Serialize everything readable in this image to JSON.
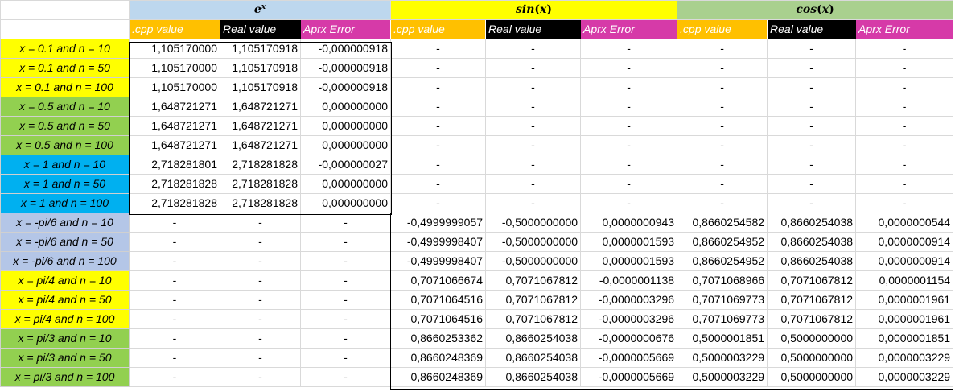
{
  "colors": {
    "ex_band": "#bdd7ee",
    "sin_band": "#ffff00",
    "cos_band": "#a9d08e",
    "cpp_header": "#ffc000",
    "real_header": "#000000",
    "error_header": "#d63aa8",
    "row_yellow": "#ffff00",
    "row_green": "#92d050",
    "row_blue": "#00b0f0",
    "row_lavender": "#b4c6e7"
  },
  "groups": [
    {
      "key": "ex",
      "base": "e",
      "sup": "x"
    },
    {
      "key": "sin",
      "func": "sin",
      "arg": "x"
    },
    {
      "key": "cos",
      "func": "cos",
      "arg": "x"
    }
  ],
  "headers": [
    ".cpp value",
    "Real value",
    "Aprx Error",
    ".cpp value",
    "Real value",
    "Aprx Error",
    ".cpp value",
    "Real value",
    "Aprx Error"
  ],
  "rows": [
    {
      "label": "x = 0.1 and n = 10",
      "color": "#ffff00",
      "cells": [
        "1,105170000",
        "1,105170918",
        "-0,000000918",
        "-",
        "-",
        "-",
        "-",
        "-",
        "-"
      ]
    },
    {
      "label": "x = 0.1 and n = 50",
      "color": "#ffff00",
      "cells": [
        "1,105170000",
        "1,105170918",
        "-0,000000918",
        "-",
        "-",
        "-",
        "-",
        "-",
        "-"
      ]
    },
    {
      "label": "x = 0.1 and n = 100",
      "color": "#ffff00",
      "cells": [
        "1,105170000",
        "1,105170918",
        "-0,000000918",
        "-",
        "-",
        "-",
        "-",
        "-",
        "-"
      ]
    },
    {
      "label": "x = 0.5 and n = 10",
      "color": "#92d050",
      "cells": [
        "1,648721271",
        "1,648721271",
        "0,000000000",
        "-",
        "-",
        "-",
        "-",
        "-",
        "-"
      ]
    },
    {
      "label": "x = 0.5 and n = 50",
      "color": "#92d050",
      "cells": [
        "1,648721271",
        "1,648721271",
        "0,000000000",
        "-",
        "-",
        "-",
        "-",
        "-",
        "-"
      ]
    },
    {
      "label": "x = 0.5 and n = 100",
      "color": "#92d050",
      "cells": [
        "1,648721271",
        "1,648721271",
        "0,000000000",
        "-",
        "-",
        "-",
        "-",
        "-",
        "-"
      ]
    },
    {
      "label": "x = 1 and n = 10",
      "color": "#00b0f0",
      "cells": [
        "2,718281801",
        "2,718281828",
        "-0,000000027",
        "-",
        "-",
        "-",
        "-",
        "-",
        "-"
      ]
    },
    {
      "label": "x = 1 and n = 50",
      "color": "#00b0f0",
      "cells": [
        "2,718281828",
        "2,718281828",
        "0,000000000",
        "-",
        "-",
        "-",
        "-",
        "-",
        "-"
      ]
    },
    {
      "label": "x = 1 and n = 100",
      "color": "#00b0f0",
      "cells": [
        "2,718281828",
        "2,718281828",
        "0,000000000",
        "-",
        "-",
        "-",
        "-",
        "-",
        "-"
      ]
    },
    {
      "label": "x = -pi/6 and n = 10",
      "color": "#b4c6e7",
      "cells": [
        "-",
        "-",
        "-",
        "-0,4999999057",
        "-0,5000000000",
        "0,0000000943",
        "0,8660254582",
        "0,8660254038",
        "0,0000000544"
      ]
    },
    {
      "label": "x = -pi/6 and n = 50",
      "color": "#b4c6e7",
      "cells": [
        "-",
        "-",
        "-",
        "-0,4999998407",
        "-0,5000000000",
        "0,0000001593",
        "0,8660254952",
        "0,8660254038",
        "0,0000000914"
      ]
    },
    {
      "label": "x = -pi/6 and n = 100",
      "color": "#b4c6e7",
      "cells": [
        "-",
        "-",
        "-",
        "-0,4999998407",
        "-0,5000000000",
        "0,0000001593",
        "0,8660254952",
        "0,8660254038",
        "0,0000000914"
      ]
    },
    {
      "label": "x = pi/4 and n = 10",
      "color": "#ffff00",
      "cells": [
        "-",
        "-",
        "-",
        "0,7071066674",
        "0,7071067812",
        "-0,0000001138",
        "0,7071068966",
        "0,7071067812",
        "0,0000001154"
      ]
    },
    {
      "label": "x = pi/4 and n = 50",
      "color": "#ffff00",
      "cells": [
        "-",
        "-",
        "-",
        "0,7071064516",
        "0,7071067812",
        "-0,0000003296",
        "0,7071069773",
        "0,7071067812",
        "0,0000001961"
      ]
    },
    {
      "label": "x = pi/4 and n = 100",
      "color": "#ffff00",
      "cells": [
        "-",
        "-",
        "-",
        "0,7071064516",
        "0,7071067812",
        "-0,0000003296",
        "0,7071069773",
        "0,7071067812",
        "0,0000001961"
      ]
    },
    {
      "label": "x = pi/3 and n = 10",
      "color": "#92d050",
      "cells": [
        "-",
        "-",
        "-",
        "0,8660253362",
        "0,8660254038",
        "-0,0000000676",
        "0,5000001851",
        "0,5000000000",
        "0,0000001851"
      ]
    },
    {
      "label": "x = pi/3 and n = 50",
      "color": "#92d050",
      "cells": [
        "-",
        "-",
        "-",
        "0,8660248369",
        "0,8660254038",
        "-0,0000005669",
        "0,5000003229",
        "0,5000000000",
        "0,0000003229"
      ]
    },
    {
      "label": "x = pi/3 and n = 100",
      "color": "#92d050",
      "cells": [
        "-",
        "-",
        "-",
        "0,8660248369",
        "0,8660254038",
        "-0,0000005669",
        "0,5000003229",
        "0,5000000000",
        "0,0000003229"
      ]
    }
  ]
}
